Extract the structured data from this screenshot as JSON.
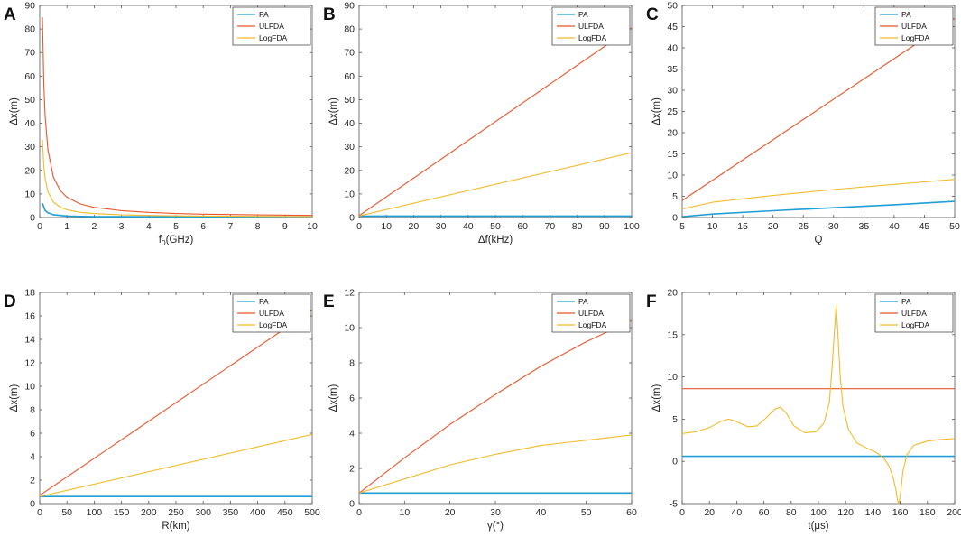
{
  "figure": {
    "legend_labels": [
      "PA",
      "ULFDA",
      "LogFDA"
    ],
    "colors": {
      "PA": "#1f9fd6",
      "ULFDA": "#e8562a",
      "LogFDA": "#f2bb2b",
      "axis": "#262626",
      "frame": "#555555"
    }
  },
  "chart_data": [
    {
      "panel": "A",
      "type": "line",
      "xlabel": "f0(GHz)",
      "xlabel_main": "f",
      "xlabel_sub": "0",
      "xlabel_rest": "(GHz)",
      "ylabel": "Δx(m)",
      "xlim": [
        0,
        10
      ],
      "ylim": [
        0,
        90
      ],
      "xticks": [
        0,
        1,
        2,
        3,
        4,
        5,
        6,
        7,
        8,
        9,
        10
      ],
      "yticks": [
        0,
        10,
        20,
        30,
        40,
        50,
        60,
        70,
        80,
        90
      ],
      "legend": "top-right",
      "series": [
        {
          "name": "PA",
          "x": [
            0.1,
            0.2,
            0.3,
            0.5,
            1,
            2,
            5,
            10
          ],
          "y": [
            6,
            3,
            2,
            1.2,
            0.6,
            0.4,
            0.3,
            0.3
          ]
        },
        {
          "name": "ULFDA",
          "x": [
            0.1,
            0.15,
            0.2,
            0.3,
            0.5,
            0.75,
            1,
            1.5,
            2,
            3,
            4,
            5,
            6,
            8,
            10
          ],
          "y": [
            85,
            57,
            43,
            28.7,
            17.2,
            11.5,
            8.6,
            5.7,
            4.3,
            2.9,
            2.2,
            1.7,
            1.4,
            1.1,
            0.9
          ]
        },
        {
          "name": "LogFDA",
          "x": [
            0.1,
            0.15,
            0.2,
            0.3,
            0.5,
            0.75,
            1,
            1.5,
            2,
            3,
            5,
            10
          ],
          "y": [
            33,
            22,
            16.5,
            11,
            6.6,
            4.4,
            3.3,
            2.2,
            1.7,
            1.1,
            0.7,
            0.35
          ]
        }
      ]
    },
    {
      "panel": "B",
      "type": "line",
      "xlabel": "Δf(kHz)",
      "ylabel": "Δx(m)",
      "xlim": [
        0,
        100
      ],
      "ylim": [
        0,
        90
      ],
      "xticks": [
        0,
        10,
        20,
        30,
        40,
        50,
        60,
        70,
        80,
        90,
        100
      ],
      "yticks": [
        0,
        10,
        20,
        30,
        40,
        50,
        60,
        70,
        80,
        90
      ],
      "legend": "top-right",
      "series": [
        {
          "name": "PA",
          "x": [
            0,
            100
          ],
          "y": [
            0.6,
            0.6
          ]
        },
        {
          "name": "ULFDA",
          "x": [
            0,
            100
          ],
          "y": [
            0.8,
            80.5
          ]
        },
        {
          "name": "LogFDA",
          "x": [
            0,
            100
          ],
          "y": [
            0.7,
            27.5
          ]
        }
      ]
    },
    {
      "panel": "C",
      "type": "line",
      "xlabel": "Q",
      "ylabel": "Δx(m)",
      "xlim": [
        5,
        50
      ],
      "ylim": [
        0,
        50
      ],
      "xticks": [
        5,
        10,
        15,
        20,
        25,
        30,
        35,
        40,
        45,
        50
      ],
      "yticks": [
        0,
        5,
        10,
        15,
        20,
        25,
        30,
        35,
        40,
        45,
        50
      ],
      "legend": "top-right",
      "series": [
        {
          "name": "PA",
          "x": [
            5,
            10,
            20,
            30,
            40,
            50
          ],
          "y": [
            0.2,
            0.8,
            1.6,
            2.3,
            3.0,
            3.8
          ]
        },
        {
          "name": "ULFDA",
          "x": [
            5,
            50
          ],
          "y": [
            4.0,
            47.0
          ]
        },
        {
          "name": "LogFDA",
          "x": [
            5,
            10,
            15,
            20,
            30,
            40,
            50
          ],
          "y": [
            2.0,
            3.6,
            4.4,
            5.2,
            6.6,
            7.8,
            9.0
          ]
        }
      ]
    },
    {
      "panel": "D",
      "type": "line",
      "xlabel": "R(km)",
      "ylabel": "Δx(m)",
      "xlim": [
        0,
        500
      ],
      "ylim": [
        0,
        18
      ],
      "xticks": [
        0,
        50,
        100,
        150,
        200,
        250,
        300,
        350,
        400,
        450,
        500
      ],
      "yticks": [
        0,
        2,
        4,
        6,
        8,
        10,
        12,
        14,
        16,
        18
      ],
      "legend": "top-right",
      "series": [
        {
          "name": "PA",
          "x": [
            0,
            500
          ],
          "y": [
            0.6,
            0.6
          ]
        },
        {
          "name": "ULFDA",
          "x": [
            0,
            500
          ],
          "y": [
            0.7,
            16.5
          ]
        },
        {
          "name": "LogFDA",
          "x": [
            0,
            500
          ],
          "y": [
            0.6,
            5.9
          ]
        }
      ]
    },
    {
      "panel": "E",
      "type": "line",
      "xlabel": "γ(°)",
      "ylabel": "Δx(m)",
      "xlim": [
        0,
        60
      ],
      "ylim": [
        0,
        12
      ],
      "xticks": [
        0,
        10,
        20,
        30,
        40,
        50,
        60
      ],
      "yticks": [
        0,
        2,
        4,
        6,
        8,
        10,
        12
      ],
      "legend": "top-right",
      "series": [
        {
          "name": "PA",
          "x": [
            0,
            60
          ],
          "y": [
            0.6,
            0.6
          ]
        },
        {
          "name": "ULFDA",
          "x": [
            0,
            10,
            20,
            30,
            40,
            50,
            60
          ],
          "y": [
            0.6,
            2.6,
            4.5,
            6.2,
            7.8,
            9.2,
            10.4
          ]
        },
        {
          "name": "LogFDA",
          "x": [
            0,
            10,
            20,
            30,
            40,
            50,
            60
          ],
          "y": [
            0.6,
            1.4,
            2.2,
            2.8,
            3.3,
            3.6,
            3.9
          ]
        }
      ]
    },
    {
      "panel": "F",
      "type": "line",
      "xlabel": "t(μs)",
      "ylabel": "Δx(m)",
      "xlim": [
        0,
        200
      ],
      "ylim": [
        -5,
        20
      ],
      "xticks": [
        0,
        20,
        40,
        60,
        80,
        100,
        120,
        140,
        160,
        180,
        200
      ],
      "yticks": [
        -5,
        0,
        5,
        10,
        15,
        20
      ],
      "legend": "top-right",
      "series": [
        {
          "name": "PA",
          "x": [
            0,
            200
          ],
          "y": [
            0.6,
            0.6
          ]
        },
        {
          "name": "ULFDA",
          "x": [
            0,
            200
          ],
          "y": [
            8.6,
            8.6
          ]
        },
        {
          "name": "LogFDA",
          "x": [
            0,
            10,
            20,
            28,
            34,
            40,
            48,
            55,
            62,
            68,
            72,
            76,
            82,
            90,
            98,
            104,
            108,
            110,
            112,
            113,
            114,
            116,
            118,
            122,
            128,
            135,
            142,
            148,
            152,
            155,
            157,
            158,
            159,
            160,
            162,
            165,
            170,
            180,
            190,
            200
          ],
          "y": [
            3.3,
            3.5,
            4.0,
            4.7,
            5.0,
            4.7,
            4.1,
            4.2,
            5.2,
            6.2,
            6.4,
            5.8,
            4.2,
            3.4,
            3.5,
            4.5,
            7.0,
            11.0,
            16.0,
            18.5,
            16.0,
            10.0,
            6.5,
            3.8,
            2.2,
            1.6,
            1.1,
            0.4,
            -0.6,
            -2.0,
            -3.5,
            -4.6,
            -5.0,
            -4.2,
            -1.2,
            0.8,
            1.9,
            2.4,
            2.6,
            2.7
          ]
        }
      ]
    }
  ]
}
